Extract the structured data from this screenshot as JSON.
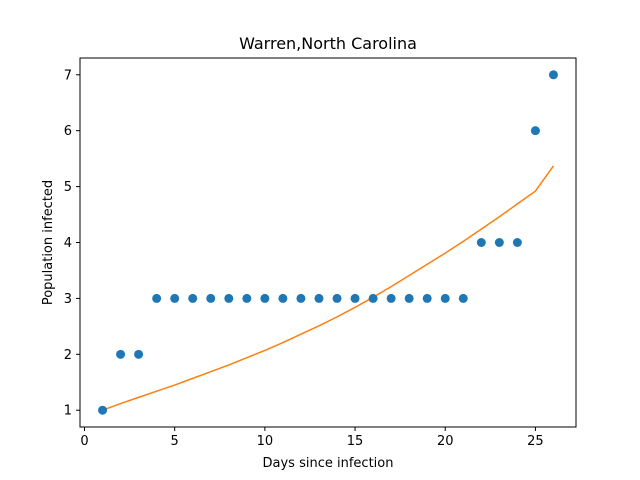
{
  "chart_data": {
    "type": "scatter",
    "title": "Warren,North Carolina",
    "xlabel": "Days since infection",
    "ylabel": "Population infected",
    "xlim": [
      -0.25,
      27.25
    ],
    "ylim": [
      0.7,
      7.3
    ],
    "xticks": [
      0,
      5,
      10,
      15,
      20,
      25
    ],
    "yticks": [
      1,
      2,
      3,
      4,
      5,
      6,
      7
    ],
    "grid": false,
    "series": [
      {
        "kind": "scatter",
        "color": "#1f77b4",
        "x": [
          1,
          2,
          3,
          4,
          5,
          6,
          7,
          8,
          9,
          10,
          11,
          12,
          13,
          14,
          15,
          16,
          17,
          18,
          19,
          20,
          21,
          22,
          23,
          24,
          25,
          26
        ],
        "y": [
          1,
          2,
          2,
          3,
          3,
          3,
          3,
          3,
          3,
          3,
          3,
          3,
          3,
          3,
          3,
          3,
          3,
          3,
          3,
          3,
          3,
          4,
          4,
          4,
          6,
          7
        ]
      },
      {
        "kind": "line",
        "color": "#ff7f0e",
        "x": [
          1,
          2,
          3,
          4,
          5,
          6,
          7,
          8,
          9,
          10,
          11,
          12,
          13,
          14,
          15,
          16,
          17,
          18,
          19,
          20,
          21,
          22,
          23,
          24,
          25,
          26
        ],
        "y": [
          1.0,
          1.12,
          1.23,
          1.34,
          1.45,
          1.57,
          1.69,
          1.81,
          1.94,
          2.07,
          2.21,
          2.36,
          2.51,
          2.67,
          2.84,
          3.02,
          3.21,
          3.41,
          3.61,
          3.81,
          4.02,
          4.24,
          4.46,
          4.69,
          4.92,
          5.37
        ]
      }
    ]
  }
}
